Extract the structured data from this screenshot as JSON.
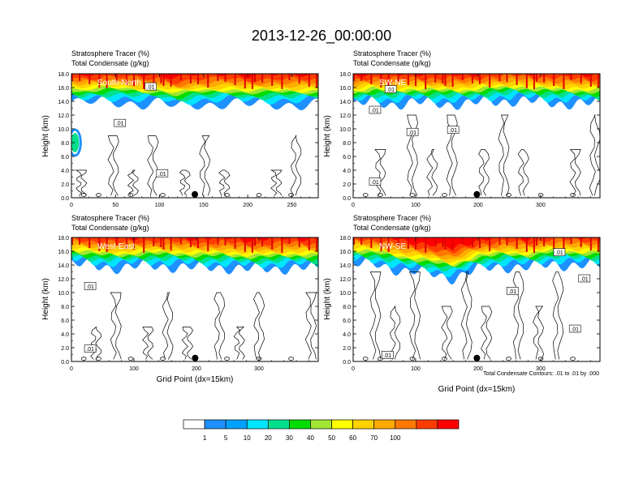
{
  "title": "2013-12-26_00:00:00",
  "footer_note": "Total Condensate Contours: .01 to .01 by .000",
  "chart_data": [
    {
      "type": "heatmap",
      "panel_label": "South-North",
      "subtitle_1": "Stratosphere Tracer   (%)",
      "subtitle_2": "Total Condensate   (g/kg)",
      "ylabel": "Height (km)",
      "xlabel": "",
      "xlim": [
        0,
        280
      ],
      "ylim": [
        0,
        18
      ],
      "xticks": [
        0,
        50,
        100,
        150,
        200,
        250
      ],
      "yticks": [
        0.0,
        2.0,
        4.0,
        6.0,
        8.0,
        10.0,
        12.0,
        14.0,
        16.0,
        18.0
      ],
      "marker_x": 140,
      "contour_labels": [
        {
          "text": ".01",
          "x": 90,
          "y": 16.1
        },
        {
          "text": ".01",
          "x": 55,
          "y": 10.8
        },
        {
          "text": ".01",
          "x": 103,
          "y": 3.5
        }
      ],
      "tracer_profile": {
        "x": [
          0,
          10,
          20,
          40,
          60,
          80,
          100,
          120,
          140,
          160,
          180,
          200,
          220,
          240,
          260,
          280
        ],
        "top20": [
          15.3,
          15.0,
          15.2,
          15.4,
          15.3,
          15.0,
          15.1,
          14.6,
          15.0,
          15.0,
          15.1,
          14.9,
          15.0,
          15.0,
          14.9,
          15.0
        ],
        "blob": [
          {
            "x": 4,
            "y": 8,
            "label": "left-edge tracer patch"
          }
        ]
      }
    },
    {
      "type": "heatmap",
      "panel_label": "SW-NE",
      "subtitle_1": "Stratosphere Tracer   (%)",
      "subtitle_2": "Total Condensate   (g/kg)",
      "ylabel": "Height (km)",
      "xlabel": "",
      "xlim": [
        0,
        395
      ],
      "ylim": [
        0,
        18
      ],
      "xticks": [
        0,
        100,
        200,
        300
      ],
      "yticks": [
        0.0,
        2.0,
        4.0,
        6.0,
        8.0,
        10.0,
        12.0,
        14.0,
        16.0,
        18.0
      ],
      "marker_x": 198,
      "contour_labels": [
        {
          "text": ".01",
          "x": 60,
          "y": 15.7
        },
        {
          "text": ".01",
          "x": 35,
          "y": 12.7
        },
        {
          "text": ".01",
          "x": 95,
          "y": 9.5
        },
        {
          "text": ".01",
          "x": 160,
          "y": 9.8
        },
        {
          "text": ".01",
          "x": 35,
          "y": 2.3
        }
      ],
      "tracer_profile": {
        "x": [
          0,
          30,
          60,
          100,
          140,
          180,
          220,
          260,
          300,
          340,
          395
        ],
        "top20": [
          14.8,
          15.3,
          15.0,
          15.2,
          15.1,
          15.0,
          15.4,
          15.5,
          15.3,
          15.1,
          15.0
        ]
      }
    },
    {
      "type": "heatmap",
      "panel_label": "West-East",
      "subtitle_1": "Stratosphere Tracer   (%)",
      "subtitle_2": "Total Condensate   (g/kg)",
      "ylabel": "Height (km)",
      "xlabel": "Grid Point (dx=15km)",
      "xlim": [
        0,
        395
      ],
      "ylim": [
        0,
        18
      ],
      "xticks": [
        0,
        100,
        200,
        300
      ],
      "yticks": [
        0.0,
        2.0,
        4.0,
        6.0,
        8.0,
        10.0,
        12.0,
        14.0,
        16.0,
        18.0
      ],
      "marker_x": 198,
      "contour_labels": [
        {
          "text": ".01",
          "x": 30,
          "y": 10.9
        },
        {
          "text": ".01",
          "x": 30,
          "y": 1.8
        }
      ],
      "tracer_profile": {
        "x": [
          0,
          40,
          80,
          120,
          160,
          200,
          240,
          280,
          320,
          360,
          395
        ],
        "top20": [
          15.6,
          15.2,
          15.0,
          15.3,
          15.2,
          15.0,
          15.1,
          14.8,
          14.9,
          15.0,
          14.9
        ]
      }
    },
    {
      "type": "heatmap",
      "panel_label": "NW-SE",
      "subtitle_1": "Stratosphere Tracer   (%)",
      "subtitle_2": "Total Condensate   (g/kg)",
      "ylabel": "Height (km)",
      "xlabel": "Grid Point (dx=15km)",
      "xlim": [
        0,
        395
      ],
      "ylim": [
        0,
        18
      ],
      "xticks": [
        0,
        100,
        200,
        300
      ],
      "yticks": [
        0.0,
        2.0,
        4.0,
        6.0,
        8.0,
        10.0,
        12.0,
        14.0,
        16.0,
        18.0
      ],
      "marker_x": 198,
      "contour_labels": [
        {
          "text": ".01",
          "x": 330,
          "y": 15.8
        },
        {
          "text": ".01",
          "x": 370,
          "y": 12.0
        },
        {
          "text": ".01",
          "x": 255,
          "y": 10.2
        },
        {
          "text": ".01",
          "x": 355,
          "y": 4.7
        },
        {
          "text": ".01",
          "x": 55,
          "y": 0.9
        }
      ],
      "tracer_profile": {
        "x": [
          0,
          40,
          80,
          120,
          160,
          200,
          240,
          280,
          320,
          360,
          395
        ],
        "top20": [
          15.6,
          15.4,
          14.6,
          14.2,
          13.5,
          14.8,
          15.2,
          15.0,
          15.6,
          15.3,
          15.3
        ]
      }
    }
  ],
  "colorbar": {
    "levels": [
      "1",
      "5",
      "10",
      "20",
      "30",
      "40",
      "50",
      "60",
      "70",
      "100"
    ],
    "colors": [
      "#ffffff",
      "#1e90ff",
      "#00a0ff",
      "#00e5ff",
      "#00e08c",
      "#00dc00",
      "#a0e632",
      "#ffff00",
      "#ffd200",
      "#ffaa00",
      "#ff7800",
      "#ff3c00",
      "#ff0000"
    ]
  },
  "colors": {
    "white": "#ffffff",
    "blue": "#1e90ff",
    "lightblue": "#00c8ff",
    "cyan": "#00e5ff",
    "teal": "#00e08c",
    "green": "#00dc00",
    "yellowgreen": "#a0e632",
    "yellow": "#ffff00",
    "gold": "#ffd200",
    "orange": "#ffaa00",
    "darkorange": "#ff7800",
    "orangered": "#ff3c00",
    "red": "#ff0000"
  }
}
